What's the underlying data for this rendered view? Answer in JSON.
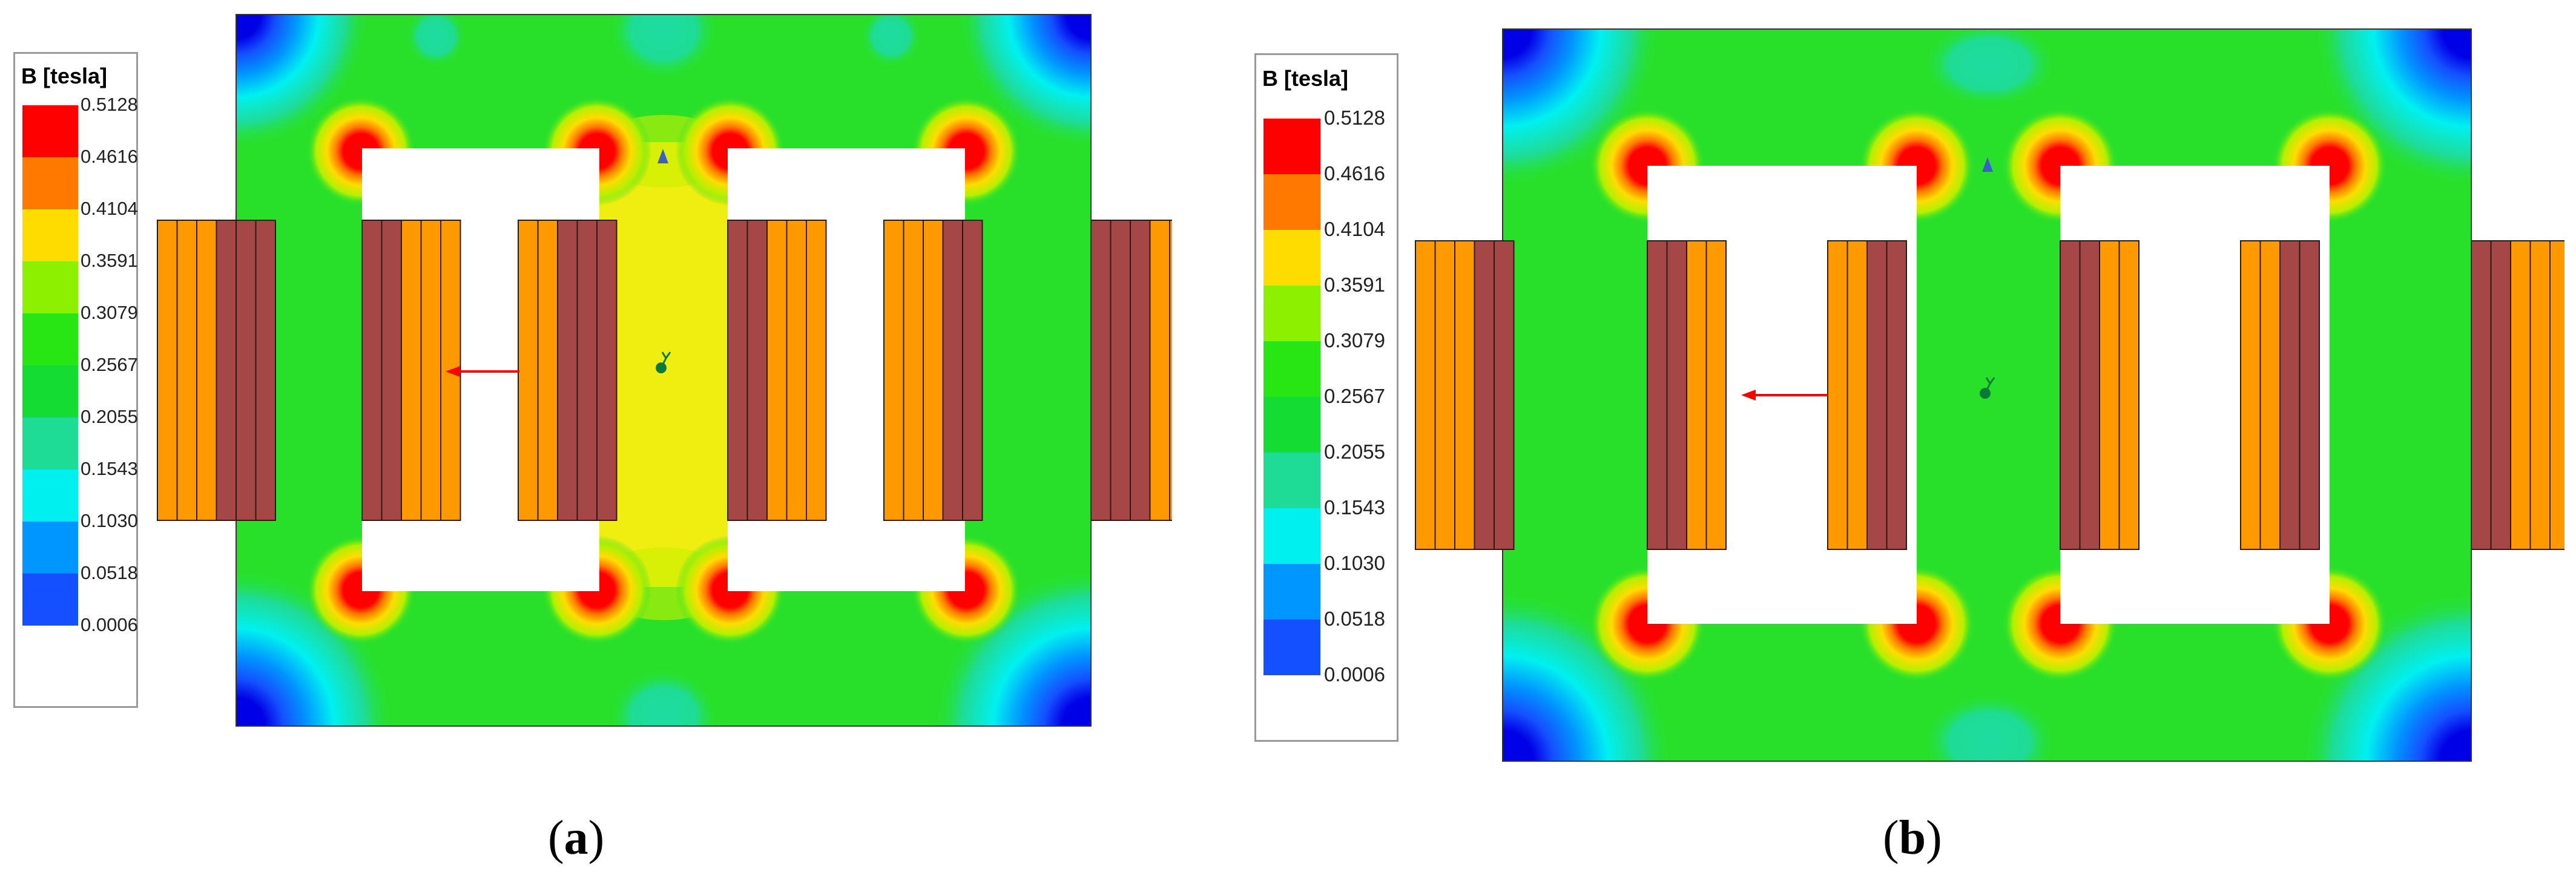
{
  "legend": {
    "title": "B [tesla]",
    "levels": [
      "0.5128",
      "0.4616",
      "0.4104",
      "0.3591",
      "0.3079",
      "0.2567",
      "0.2055",
      "0.1543",
      "0.1030",
      "0.0518",
      "0.0006"
    ],
    "colors": [
      "#ff0000",
      "#ff7800",
      "#ffdc00",
      "#8cf000",
      "#28e614",
      "#14dc32",
      "#1edc96",
      "#00f0f0",
      "#0096ff",
      "#1450ff",
      "#0000e6"
    ]
  },
  "panels": [
    {
      "letter": "a",
      "caption_open": "(",
      "caption_close": ")"
    },
    {
      "letter": "b",
      "caption_open": "(",
      "caption_close": ")"
    }
  ],
  "palette": {
    "field_green": "#28e02a",
    "window_white": "#ffffff",
    "coil_orange": "#ff9900",
    "coil_brown": "#a64747",
    "centre_yellow": "#f0ee10",
    "arrow_red": "#ff0000"
  }
}
